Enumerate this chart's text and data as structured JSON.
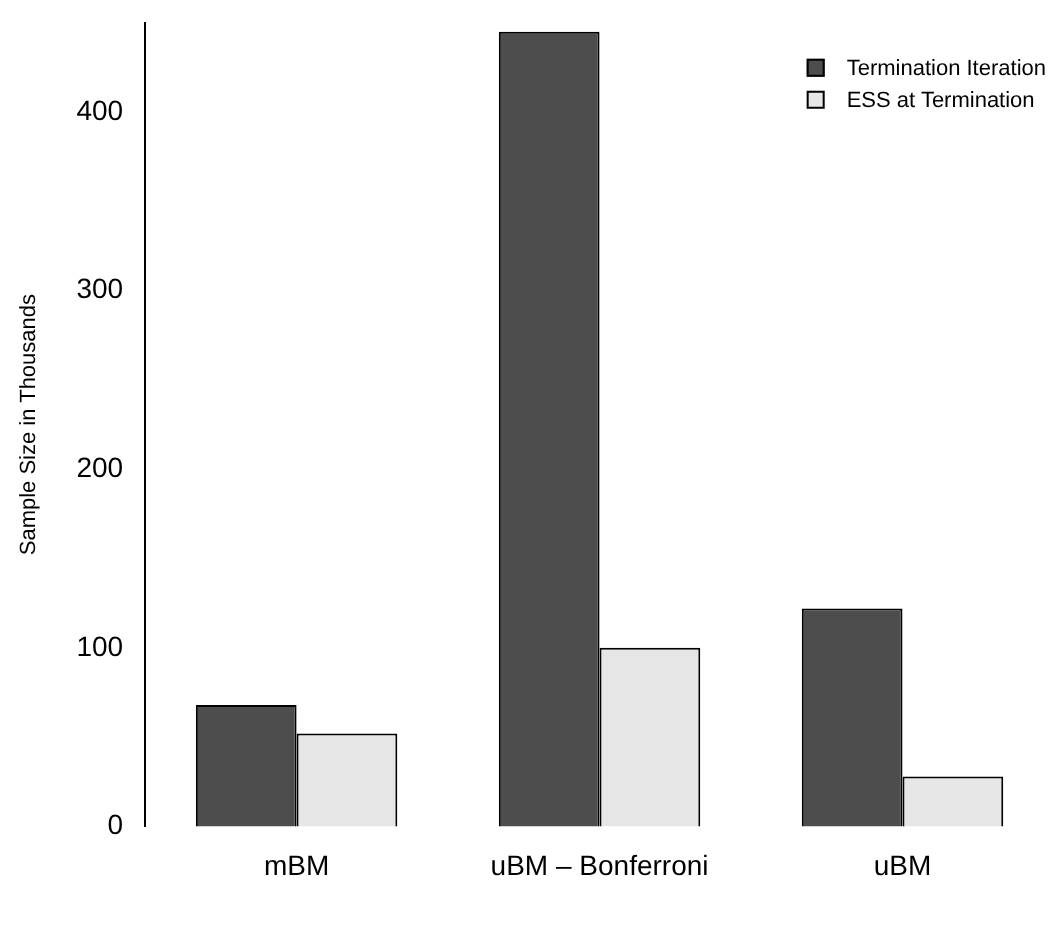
{
  "chart_data": {
    "type": "bar",
    "ylabel": "Sample Size in Thousands",
    "categories": [
      "mBM",
      "uBM – Bonferroni",
      "uBM"
    ],
    "series": [
      {
        "name": "Termination Iteration",
        "color": "#4d4d4d",
        "values": [
          68,
          445,
          122
        ]
      },
      {
        "name": "ESS at Termination",
        "color": "#e6e6e6",
        "values": [
          52,
          100,
          28
        ]
      }
    ],
    "ylim": [
      0,
      450
    ],
    "yticks": [
      0,
      100,
      200,
      300,
      400
    ],
    "grid": false,
    "legend": "top right"
  }
}
